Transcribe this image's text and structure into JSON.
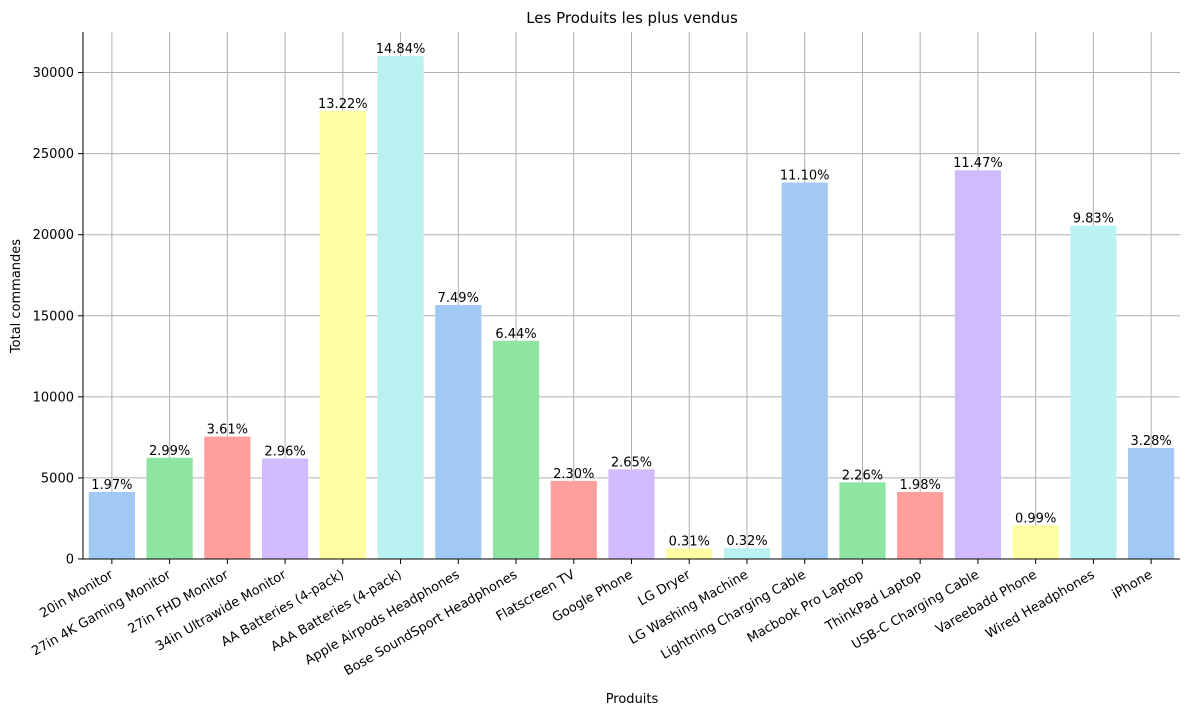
{
  "chart_data": {
    "type": "bar",
    "title": "Les Produits les plus vendus",
    "xlabel": "Produits",
    "ylabel": "Total  commandes",
    "ylim": [
      0,
      32500
    ],
    "yticks": [
      0,
      5000,
      10000,
      15000,
      20000,
      25000,
      30000
    ],
    "grid": true,
    "categories": [
      "20in Monitor",
      "27in 4K Gaming Monitor",
      "27in FHD Monitor",
      "34in Ultrawide Monitor",
      "AA Batteries (4-pack)",
      "AAA Batteries (4-pack)",
      "Apple Airpods Headphones",
      "Bose SoundSport Headphones",
      "Flatscreen TV",
      "Google Phone",
      "LG Dryer",
      "LG Washing Machine",
      "Lightning Charging Cable",
      "Macbook Pro Laptop",
      "ThinkPad Laptop",
      "USB-C Charging Cable",
      "Vareebadd Phone",
      "Wired Headphones",
      "iPhone"
    ],
    "values": [
      4129,
      6244,
      7550,
      6199,
      27635,
      31017,
      15661,
      13457,
      4819,
      5532,
      646,
      666,
      23217,
      4728,
      4130,
      23975,
      2068,
      20557,
      6849
    ],
    "labels": [
      "1.97%",
      "2.99%",
      "3.61%",
      "2.96%",
      "13.22%",
      "14.84%",
      "7.49%",
      "6.44%",
      "2.30%",
      "2.65%",
      "0.31%",
      "0.32%",
      "11.10%",
      "2.26%",
      "1.98%",
      "11.47%",
      "0.99%",
      "9.83%",
      "3.28%"
    ],
    "colors": [
      "#a1c9f4",
      "#8de5a1",
      "#ff9f9b",
      "#d0bbff",
      "#fffea3",
      "#b9f2f0",
      "#a1c9f4",
      "#8de5a1",
      "#ff9f9b",
      "#d0bbff",
      "#fffea3",
      "#b9f2f0",
      "#a1c9f4",
      "#8de5a1",
      "#ff9f9b",
      "#d0bbff",
      "#fffea3",
      "#b9f2f0",
      "#a1c9f4"
    ]
  }
}
